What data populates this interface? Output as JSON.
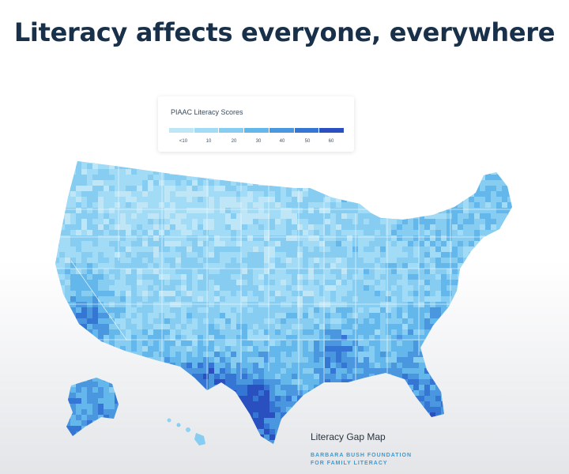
{
  "headline": "Literacy affects everyone, everywhere",
  "legend": {
    "title": "PIAAC Literacy Scores",
    "ticks": [
      "<10",
      "10",
      "20",
      "30",
      "40",
      "50",
      "60"
    ],
    "colors": [
      "#bfe6f7",
      "#a2dbf5",
      "#86cdf1",
      "#64b7ea",
      "#4a97e0",
      "#3575d4",
      "#2a4fbf"
    ]
  },
  "map": {
    "base_color": "#8fd2f3",
    "border_color": "#e8f6fd"
  },
  "source": {
    "title": "Literacy Gap Map",
    "org_line1": "BARBARA BUSH FOUNDATION",
    "org_line2": "FOR FAMILY LITERACY"
  }
}
